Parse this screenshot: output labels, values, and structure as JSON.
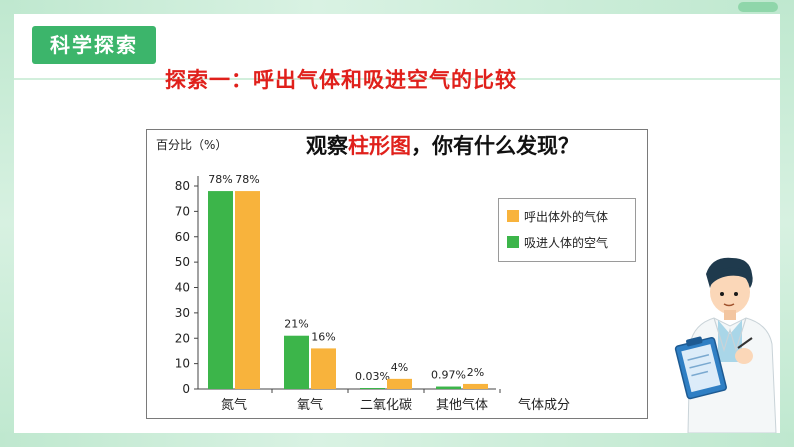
{
  "section_label": "科学探索",
  "slide_title": "探索一：呼出气体和吸进空气的比较",
  "question": {
    "before": "观察",
    "highlight": "柱形图",
    "after": "，你有什么发现？"
  },
  "colors": {
    "exhaled": "#f8b33c",
    "inhaled": "#3cb54a",
    "accent": "#3cb56b",
    "title": "#e0201b"
  },
  "chart_data": {
    "type": "bar",
    "ylabel": "百分比（%）",
    "xlabel": "气体成分",
    "ylim": [
      0,
      80
    ],
    "yticks": [
      0,
      10,
      20,
      30,
      40,
      50,
      60,
      70,
      80
    ],
    "categories": [
      "氮气",
      "氧气",
      "二氧化碳",
      "其他气体"
    ],
    "series": [
      {
        "name": "吸进人体的空气",
        "color": "#3cb54a",
        "values": [
          78,
          21,
          0.03,
          0.97
        ],
        "labels": [
          "78%",
          "21%",
          "0.03%",
          "0.97%"
        ]
      },
      {
        "name": "呼出体外的气体",
        "color": "#f8b33c",
        "values": [
          78,
          16,
          4,
          2
        ],
        "labels": [
          "78%",
          "16%",
          "4%",
          "2%"
        ]
      }
    ],
    "legend": [
      {
        "name": "呼出体外的气体",
        "color": "#f8b33c"
      },
      {
        "name": "吸进人体的空气",
        "color": "#3cb54a"
      }
    ],
    "legend_position": "right"
  }
}
